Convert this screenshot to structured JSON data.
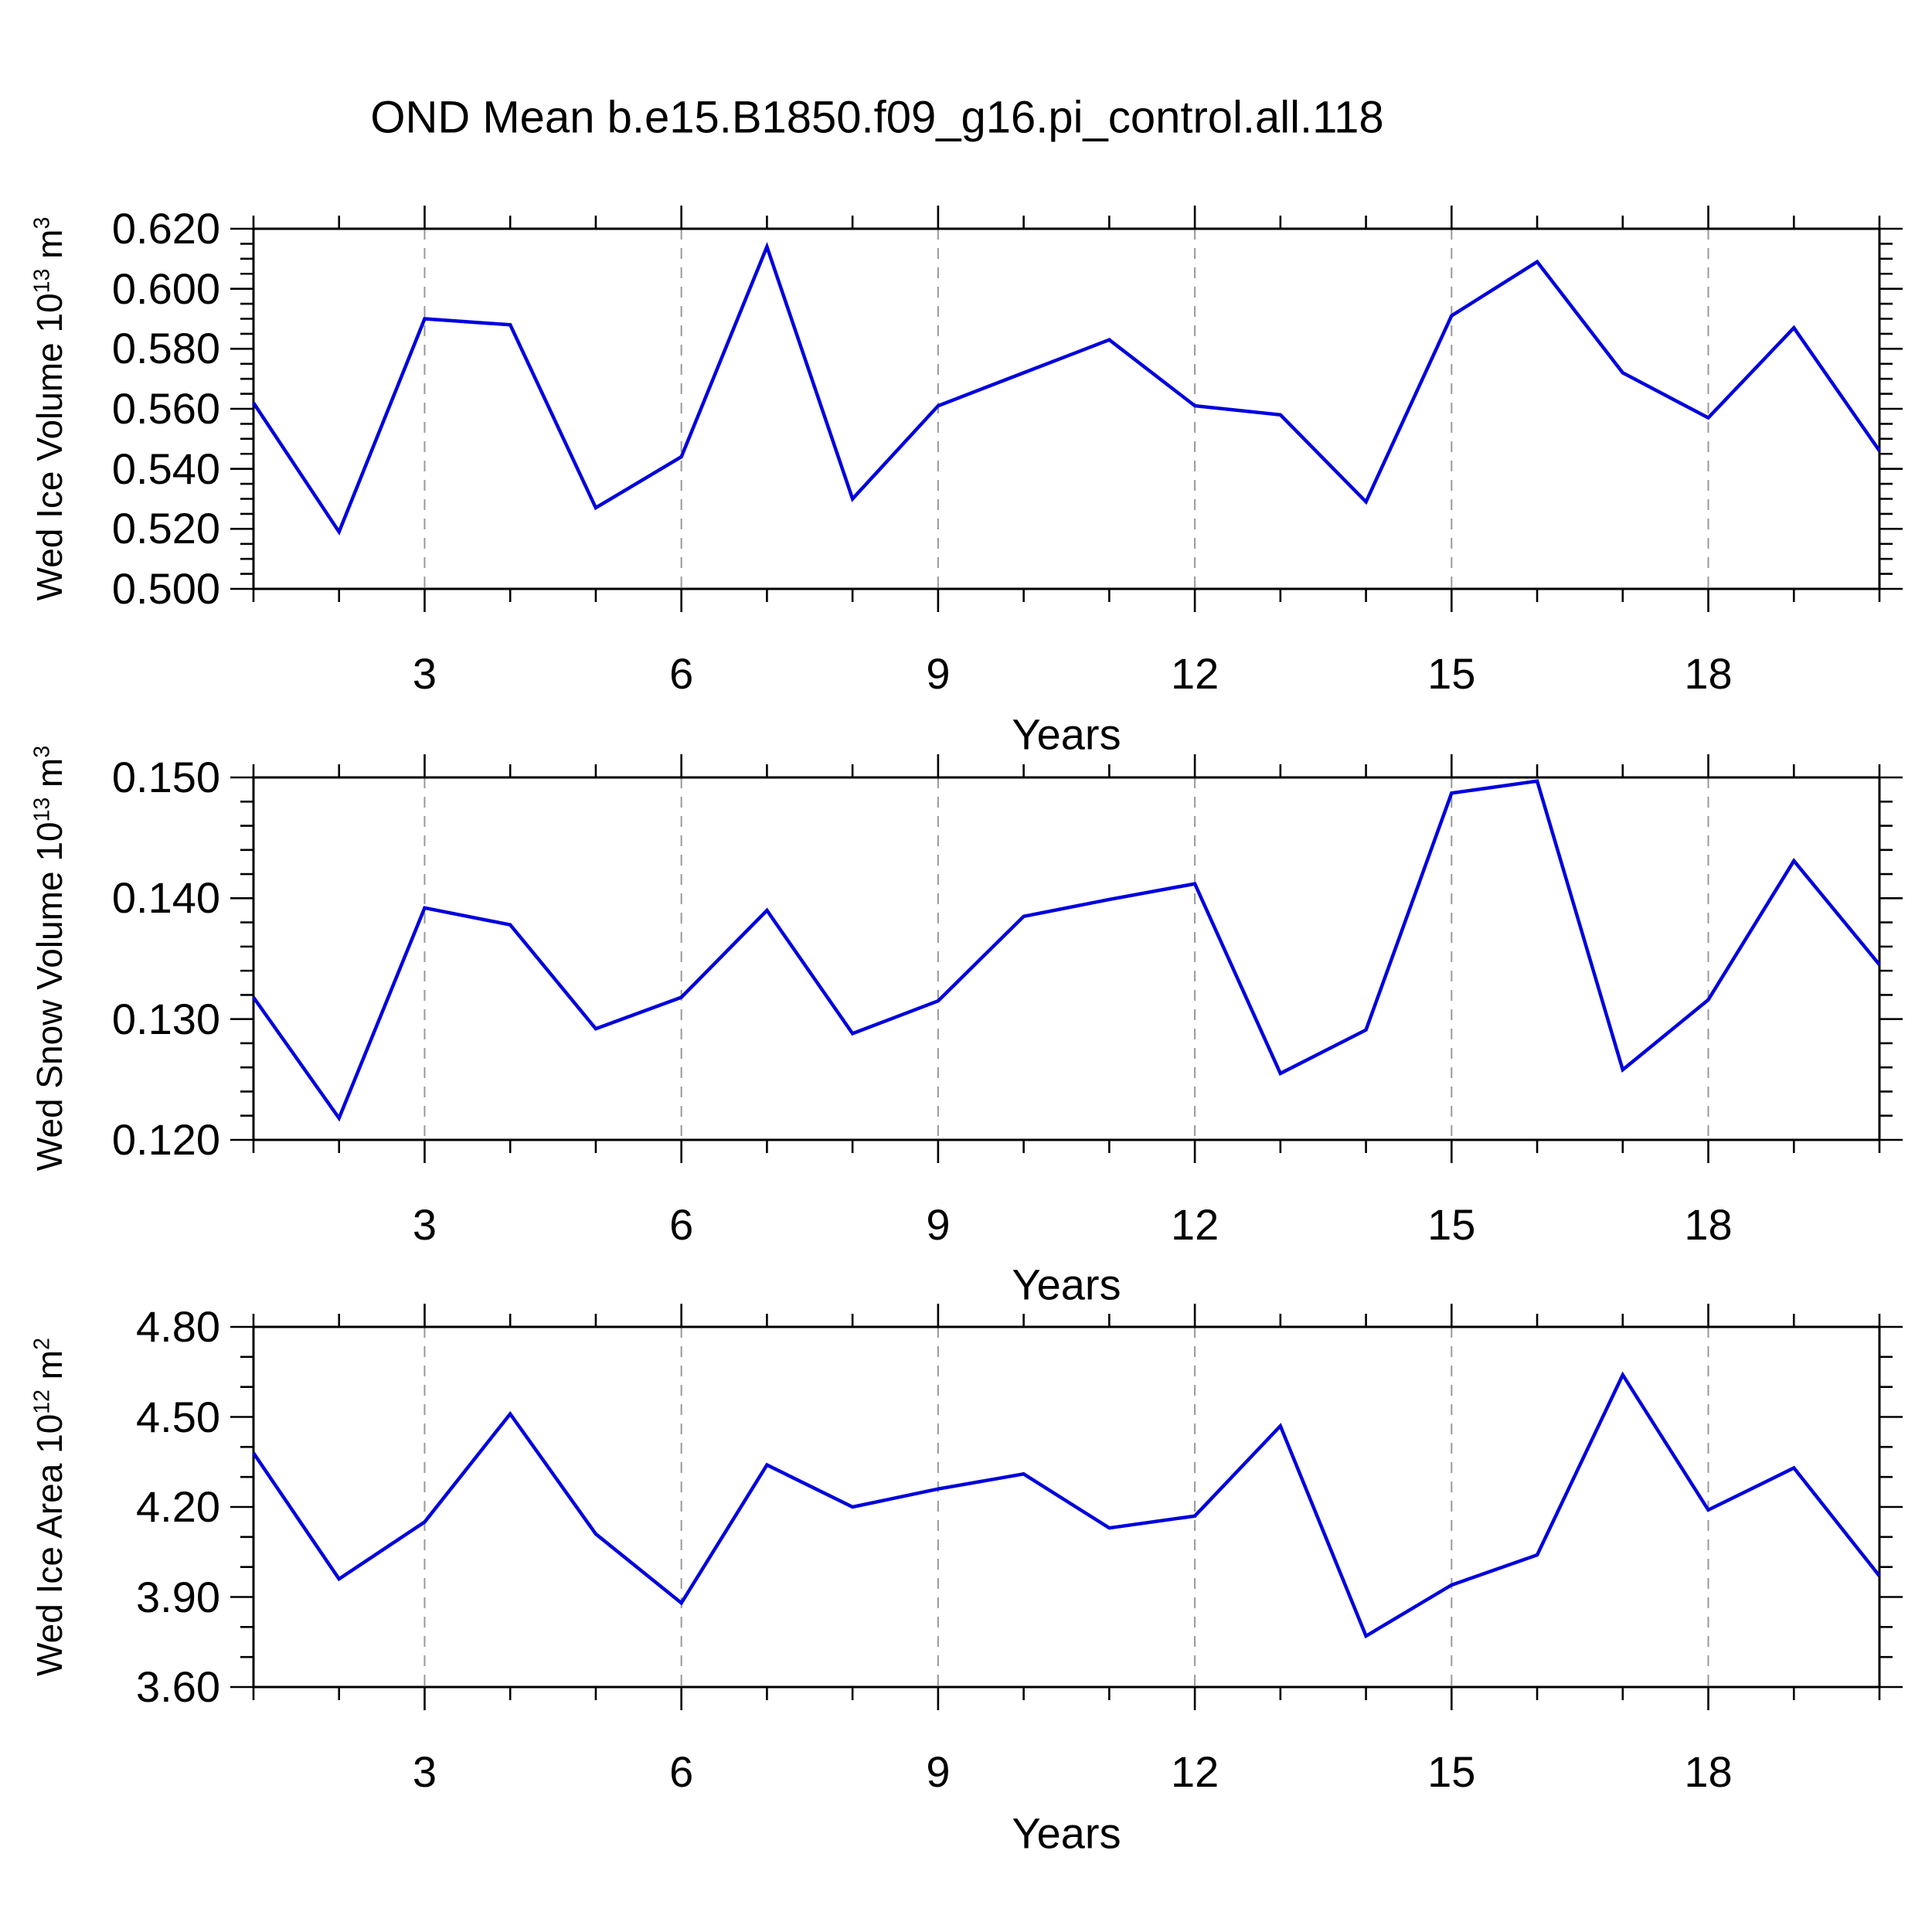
{
  "title": "OND Mean b.e15.B1850.f09_g16.pi_control.all.118",
  "colors": {
    "line": "#0000dd",
    "grid": "#999999",
    "axis": "#000000",
    "text": "#000000",
    "background": "#ffffff"
  },
  "chart_data": [
    {
      "type": "line",
      "name": "wed-ice-volume",
      "ylabel_prefix": "Wed Ice Volume 10",
      "ylabel_exp": "13",
      "ylabel_unit": " m",
      "ylabel_unit_exp": "3",
      "xlabel": "Years",
      "x": [
        1,
        2,
        3,
        4,
        5,
        6,
        7,
        8,
        9,
        10,
        11,
        12,
        13,
        14,
        15,
        16,
        17,
        18,
        19,
        20
      ],
      "values": [
        0.562,
        0.519,
        0.59,
        0.588,
        0.527,
        0.544,
        0.614,
        0.53,
        0.561,
        0.572,
        0.583,
        0.561,
        0.558,
        0.529,
        0.591,
        0.609,
        0.572,
        0.557,
        0.587,
        0.546
      ],
      "ylim": [
        0.5,
        0.62
      ],
      "ymajor_step": 0.02,
      "yminor_step": 0.005,
      "ytick_decimals": 3,
      "xlim": [
        1,
        20
      ],
      "xticks": [
        3,
        6,
        9,
        12,
        15,
        18
      ],
      "xminor_step": 1,
      "grid": "vertical-dashed",
      "legend": null
    },
    {
      "type": "line",
      "name": "wed-snow-volume",
      "ylabel_prefix": "Wed Snow Volume 10",
      "ylabel_exp": "13",
      "ylabel_unit": " m",
      "ylabel_unit_exp": "3",
      "xlabel": "Years",
      "x": [
        1,
        2,
        3,
        4,
        5,
        6,
        7,
        8,
        9,
        10,
        11,
        12,
        13,
        14,
        15,
        16,
        17,
        18,
        19,
        20
      ],
      "values": [
        0.1318,
        0.1218,
        0.1392,
        0.1378,
        0.1292,
        0.1318,
        0.139,
        0.1288,
        0.1315,
        0.1385,
        0.1399,
        0.1412,
        0.1255,
        0.1291,
        0.1487,
        0.1497,
        0.1258,
        0.1316,
        0.1431,
        0.1345
      ],
      "ylim": [
        0.12,
        0.15
      ],
      "ymajor_step": 0.01,
      "yminor_step": 0.002,
      "ytick_decimals": 3,
      "xlim": [
        1,
        20
      ],
      "xticks": [
        3,
        6,
        9,
        12,
        15,
        18
      ],
      "xminor_step": 1,
      "grid": "vertical-dashed",
      "legend": null
    },
    {
      "type": "line",
      "name": "wed-ice-area",
      "ylabel_prefix": "Wed Ice Area 10",
      "ylabel_exp": "12",
      "ylabel_unit": " m",
      "ylabel_unit_exp": "2",
      "xlabel": "Years",
      "x": [
        1,
        2,
        3,
        4,
        5,
        6,
        7,
        8,
        9,
        10,
        11,
        12,
        13,
        14,
        15,
        16,
        17,
        18,
        19,
        20
      ],
      "values": [
        4.38,
        3.96,
        4.15,
        4.51,
        4.11,
        3.88,
        4.34,
        4.2,
        4.26,
        4.31,
        4.13,
        4.17,
        4.47,
        3.77,
        3.94,
        4.04,
        4.64,
        4.19,
        4.33,
        3.97
      ],
      "ylim": [
        3.6,
        4.8
      ],
      "ymajor_step": 0.3,
      "yminor_step": 0.1,
      "ytick_decimals": 2,
      "xlim": [
        1,
        20
      ],
      "xticks": [
        3,
        6,
        9,
        12,
        15,
        18
      ],
      "xminor_step": 1,
      "grid": "vertical-dashed",
      "legend": null
    }
  ]
}
